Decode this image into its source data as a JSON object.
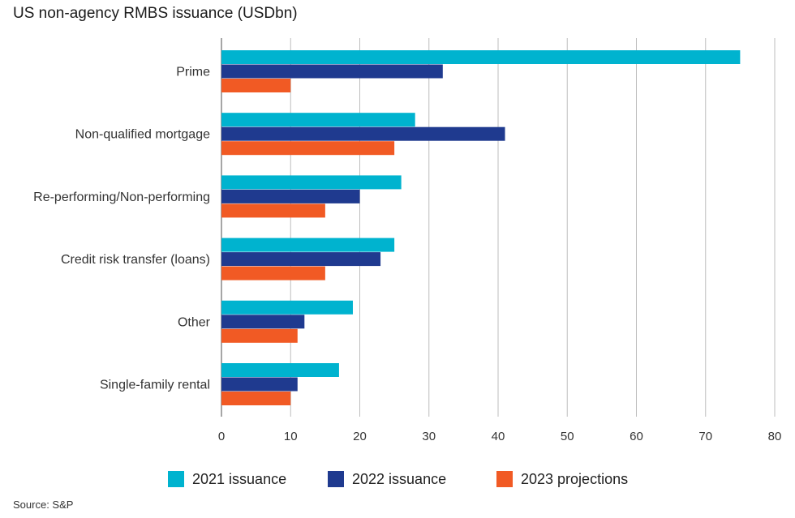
{
  "title": "US non-agency RMBS issuance (USDbn)",
  "source": "Source: S&P",
  "chart_data": {
    "type": "bar",
    "orientation": "horizontal",
    "categories": [
      "Prime",
      "Non-qualified mortgage",
      "Re-performing/Non-performing",
      "Credit risk transfer (loans)",
      "Other",
      "Single-family rental"
    ],
    "series": [
      {
        "name": "2021 issuance",
        "color": "#00b3cf",
        "values": [
          75,
          28,
          26,
          25,
          19,
          17
        ]
      },
      {
        "name": "2022 issuance",
        "color": "#1f3a8f",
        "values": [
          32,
          41,
          20,
          23,
          12,
          11
        ]
      },
      {
        "name": "2023 projections",
        "color": "#f15a24",
        "values": [
          10,
          25,
          15,
          15,
          11,
          10
        ]
      }
    ],
    "xlim": [
      0,
      80
    ],
    "xticks": [
      0,
      10,
      20,
      30,
      40,
      50,
      60,
      70,
      80
    ],
    "grid": "vertical",
    "legend_position": "bottom"
  }
}
